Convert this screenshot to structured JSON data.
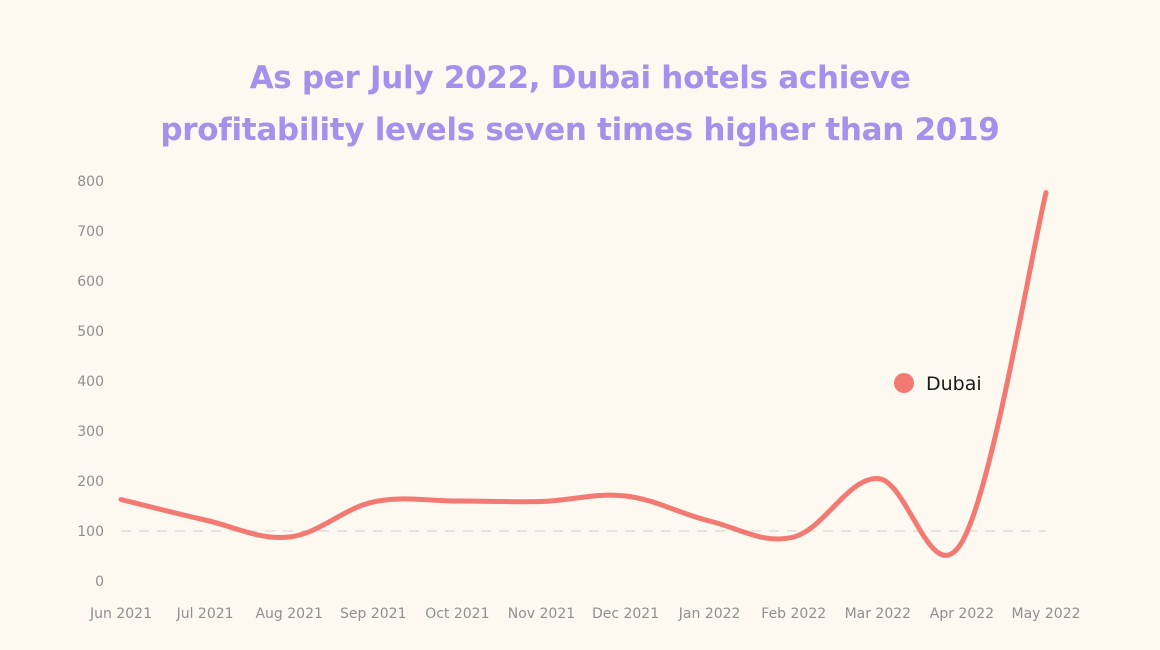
{
  "chart_data": {
    "type": "line",
    "title_lines": [
      "As per July 2022, Dubai hotels achieve",
      "profitability levels seven times higher than 2019"
    ],
    "categories": [
      "Jun 2021",
      "Jul 2021",
      "Aug 2021",
      "Sep 2021",
      "Oct 2021",
      "Nov 2021",
      "Dec 2021",
      "Jan 2022",
      "Feb 2022",
      "Mar 2022",
      "Apr 2022",
      "May 2022"
    ],
    "series": [
      {
        "name": "Dubai",
        "color": "#f27a72",
        "x": [
          0,
          1,
          2,
          3,
          4,
          5,
          6,
          7,
          8,
          9,
          10,
          11
        ],
        "values": [
          163,
          122,
          88,
          158,
          160,
          159,
          170,
          120,
          88,
          205,
          78,
          777
        ]
      }
    ],
    "reference_line": {
      "value": 100,
      "style": "dashed",
      "color": "#dddddd"
    },
    "ylim": [
      0,
      800
    ],
    "yticks": [
      "0",
      "100",
      "200",
      "300",
      "400",
      "500",
      "600",
      "700",
      "800"
    ],
    "legend": {
      "label": "Dubai",
      "placement": "right"
    },
    "xlabel": "",
    "ylabel": ""
  }
}
